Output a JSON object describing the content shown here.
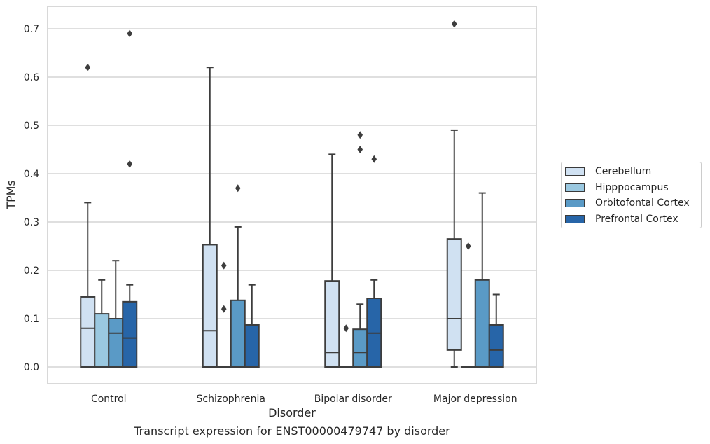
{
  "caption": "Transcript expression for ENST00000479747 by disorder",
  "chart_data": {
    "type": "boxplot",
    "xlabel": "Disorder",
    "ylabel": "TPMs",
    "ylim": [
      -0.035,
      0.745
    ],
    "yticks": [
      0.0,
      0.1,
      0.2,
      0.3,
      0.4,
      0.5,
      0.6,
      0.7
    ],
    "ytick_labels": [
      "0.0",
      "0.1",
      "0.2",
      "0.3",
      "0.4",
      "0.5",
      "0.6",
      "0.7"
    ],
    "grid": "horizontal",
    "legend_position": "right",
    "categories": [
      "Control",
      "Schizophrenia",
      "Bipolar disorder",
      "Major depression"
    ],
    "series": [
      {
        "name": "Cerebellum",
        "color": "#d0e1f2",
        "boxes": [
          {
            "q1": 0.0,
            "median": 0.08,
            "q3": 0.145,
            "whisker_low": 0.0,
            "whisker_high": 0.34,
            "outliers": [
              0.62
            ]
          },
          {
            "q1": 0.0,
            "median": 0.075,
            "q3": 0.253,
            "whisker_low": 0.0,
            "whisker_high": 0.62,
            "outliers": []
          },
          {
            "q1": 0.0,
            "median": 0.03,
            "q3": 0.178,
            "whisker_low": 0.0,
            "whisker_high": 0.44,
            "outliers": []
          },
          {
            "q1": 0.035,
            "median": 0.1,
            "q3": 0.265,
            "whisker_low": 0.0,
            "whisker_high": 0.49,
            "outliers": [
              0.71
            ]
          }
        ]
      },
      {
        "name": "Hipppocampus",
        "color": "#9ac8e0",
        "boxes": [
          {
            "q1": 0.0,
            "median": 0.0,
            "q3": 0.11,
            "whisker_low": 0.0,
            "whisker_high": 0.18,
            "outliers": []
          },
          {
            "q1": 0.0,
            "median": 0.0,
            "q3": 0.0,
            "whisker_low": 0.0,
            "whisker_high": 0.0,
            "outliers": [
              0.12,
              0.21
            ]
          },
          {
            "q1": 0.0,
            "median": 0.0,
            "q3": 0.0,
            "whisker_low": 0.0,
            "whisker_high": 0.0,
            "outliers": [
              0.08
            ]
          },
          {
            "q1": 0.0,
            "median": 0.0,
            "q3": 0.0,
            "whisker_low": 0.0,
            "whisker_high": 0.0,
            "outliers": [
              0.25
            ]
          }
        ]
      },
      {
        "name": "Orbitofontal Cortex",
        "color": "#5a9ac6",
        "boxes": [
          {
            "q1": 0.0,
            "median": 0.07,
            "q3": 0.1,
            "whisker_low": 0.0,
            "whisker_high": 0.22,
            "outliers": []
          },
          {
            "q1": 0.0,
            "median": 0.0,
            "q3": 0.138,
            "whisker_low": 0.0,
            "whisker_high": 0.29,
            "outliers": [
              0.37
            ]
          },
          {
            "q1": 0.0,
            "median": 0.03,
            "q3": 0.078,
            "whisker_low": 0.0,
            "whisker_high": 0.13,
            "outliers": [
              0.45,
              0.48
            ]
          },
          {
            "q1": 0.0,
            "median": 0.0,
            "q3": 0.18,
            "whisker_low": 0.0,
            "whisker_high": 0.36,
            "outliers": []
          }
        ]
      },
      {
        "name": "Prefrontal Cortex",
        "color": "#2765a8",
        "boxes": [
          {
            "q1": 0.0,
            "median": 0.06,
            "q3": 0.135,
            "whisker_low": 0.0,
            "whisker_high": 0.17,
            "outliers": [
              0.42,
              0.69
            ]
          },
          {
            "q1": 0.0,
            "median": 0.0,
            "q3": 0.087,
            "whisker_low": 0.0,
            "whisker_high": 0.17,
            "outliers": []
          },
          {
            "q1": 0.0,
            "median": 0.07,
            "q3": 0.142,
            "whisker_low": 0.0,
            "whisker_high": 0.18,
            "outliers": [
              0.43
            ]
          },
          {
            "q1": 0.0,
            "median": 0.035,
            "q3": 0.087,
            "whisker_low": 0.0,
            "whisker_high": 0.15,
            "outliers": []
          }
        ]
      }
    ]
  }
}
